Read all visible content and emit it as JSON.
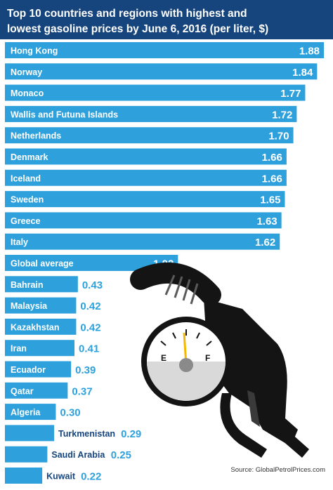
{
  "chart_data": {
    "type": "bar",
    "orientation": "horizontal",
    "title": "Top 10 countries and regions with highest and lowest gasoline prices by June 6, 2016 (per liter, $)",
    "title_lines": [
      "Top 10 countries and regions with highest and",
      "lowest gasoline prices by June 6, 2016 (per liter, $)"
    ],
    "categories": [
      "Hong Kong",
      "Norway",
      "Monaco",
      "Wallis and Futuna Islands",
      "Netherlands",
      "Denmark",
      "Iceland",
      "Sweden",
      "Greece",
      "Italy",
      "Global average",
      "Bahrain",
      "Malaysia",
      "Kazakhstan",
      "Iran",
      "Ecuador",
      "Qatar",
      "Algeria",
      "Turkmenistan",
      "Saudi Arabia",
      "Kuwait"
    ],
    "values": [
      1.88,
      1.84,
      1.77,
      1.72,
      1.7,
      1.66,
      1.66,
      1.65,
      1.63,
      1.62,
      1.02,
      0.43,
      0.42,
      0.42,
      0.41,
      0.39,
      0.37,
      0.3,
      0.29,
      0.25,
      0.22
    ],
    "value_labels": [
      "1.88",
      "1.84",
      "1.77",
      "1.72",
      "1.70",
      "1.66",
      "1.66",
      "1.65",
      "1.63",
      "1.62",
      "1.02",
      "0.43",
      "0.42",
      "0.42",
      "0.41",
      "0.39",
      "0.37",
      "0.30",
      "0.29",
      "0.25",
      "0.22"
    ],
    "source": "Source: GlobalPetrolPrices.com",
    "grid": false,
    "legend": "none"
  },
  "colors": {
    "title_bg": "#16457d",
    "bar": "#2ea1dc",
    "dark_text": "#16457d",
    "pump_black": "#141414",
    "needle": "#f5b800"
  },
  "illustration": {
    "gauge_letters": [
      "E",
      "F"
    ]
  }
}
